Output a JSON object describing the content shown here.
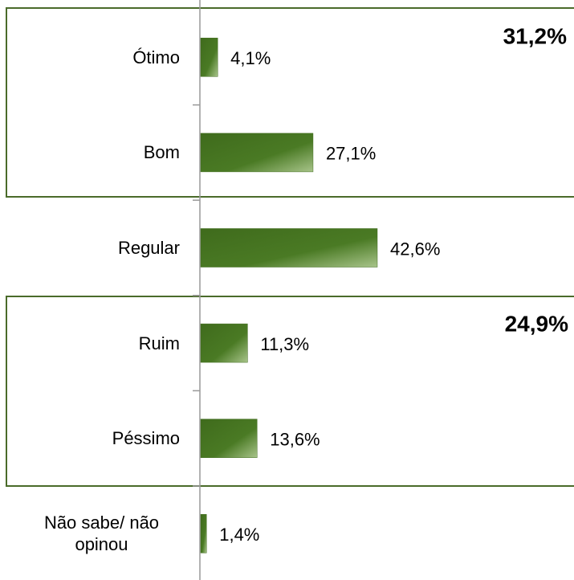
{
  "chart_data": {
    "type": "hbar",
    "categories": [
      "Ótimo",
      "Bom",
      "Regular",
      "Ruim",
      "Péssimo",
      "Não sabe/ não opinou"
    ],
    "values": [
      4.1,
      27.1,
      42.6,
      11.3,
      13.6,
      1.4
    ],
    "value_labels": [
      "4,1%",
      "27,1%",
      "42,6%",
      "11,3%",
      "13,6%",
      "1,4%"
    ],
    "color": "#3f6b1c",
    "annotations": [
      "31,2%",
      "24,9%"
    ]
  }
}
